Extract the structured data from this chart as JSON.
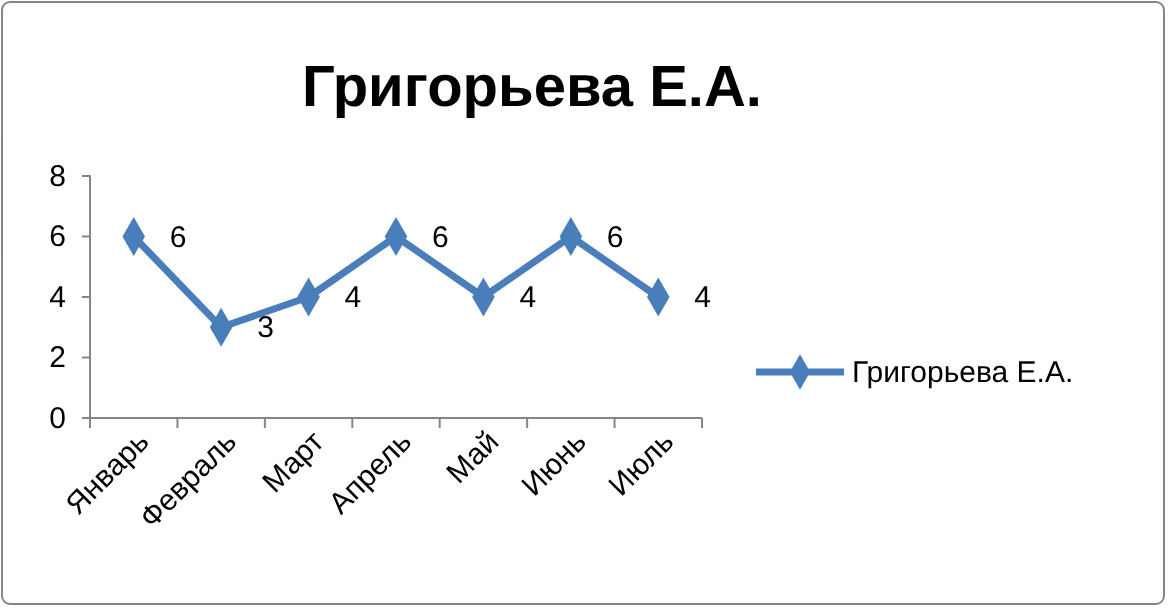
{
  "chart_data": {
    "type": "line",
    "title": "Григорьева Е.А.",
    "categories": [
      "Январь",
      "Февраль",
      "Март",
      "Апрель",
      "Май",
      "Июнь",
      "Июль"
    ],
    "series": [
      {
        "name": "Григорьева Е.А.",
        "color": "#4a7ebb",
        "values": [
          6,
          3,
          4,
          6,
          4,
          6,
          4
        ]
      }
    ],
    "ylim": [
      0,
      8
    ],
    "yticks": [
      0,
      2,
      4,
      6,
      8
    ],
    "grid": false,
    "legend": "right",
    "marker": "diamond",
    "line_style": "solid",
    "data_labels": true
  }
}
